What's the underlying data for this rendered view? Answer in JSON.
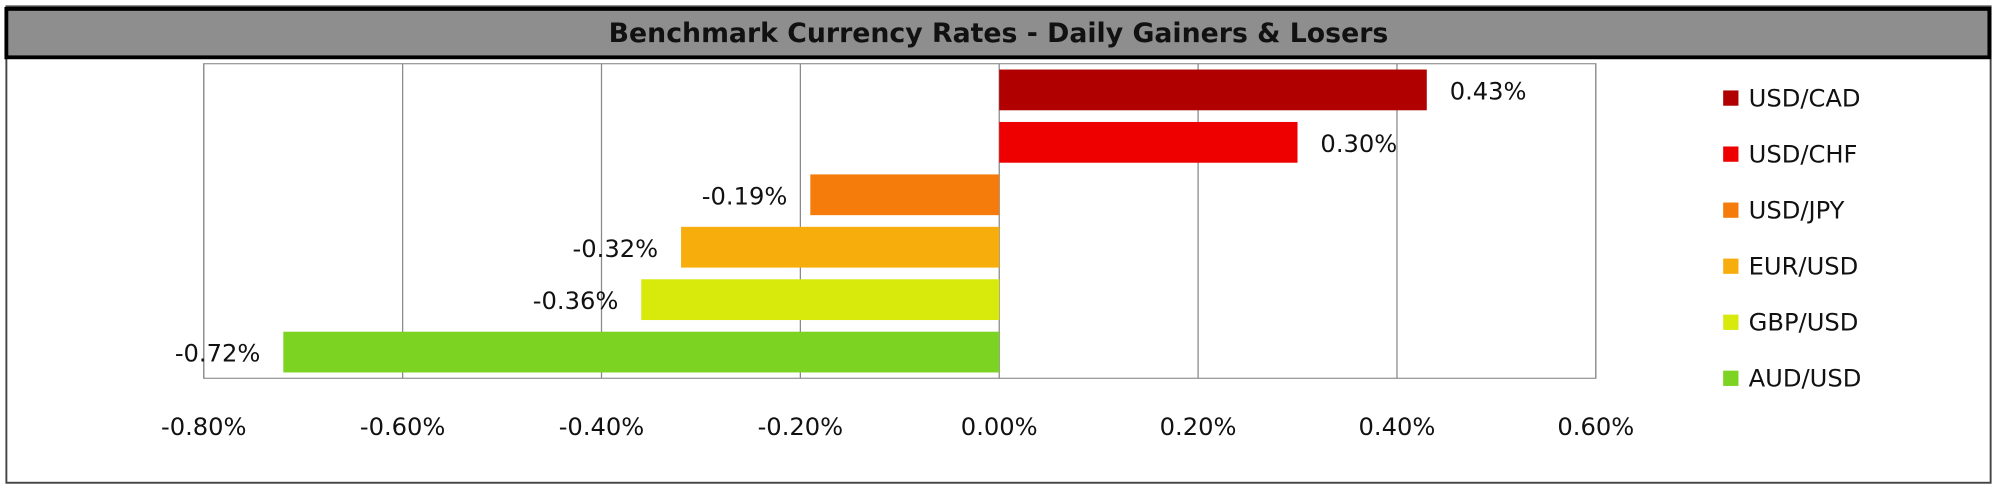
{
  "chart_data": {
    "type": "hbar",
    "title": "Benchmark Currency Rates - Daily Gainers & Losers",
    "categories": [
      "USD/CAD",
      "USD/CHF",
      "USD/JPY",
      "EUR/USD",
      "GBP/USD",
      "AUD/USD"
    ],
    "values": [
      0.43,
      0.3,
      -0.19,
      -0.32,
      -0.36,
      -0.72
    ],
    "value_labels": [
      "0.43%",
      "0.30%",
      "-0.19%",
      "-0.32%",
      "-0.36%",
      "-0.72%"
    ],
    "colors": [
      "#b10000",
      "#ee0000",
      "#f57c0a",
      "#f7ae0c",
      "#d8ea0c",
      "#7dd322"
    ],
    "xlim": [
      -0.8,
      0.6
    ],
    "xticks": [
      {
        "value": -0.8,
        "label": "-0.80%"
      },
      {
        "value": -0.6,
        "label": "-0.60%"
      },
      {
        "value": -0.4,
        "label": "-0.40%"
      },
      {
        "value": -0.2,
        "label": "-0.20%"
      },
      {
        "value": 0,
        "label": "0.00%"
      },
      {
        "value": 0.2,
        "label": "0.20%"
      },
      {
        "value": 0.4,
        "label": "0.40%"
      },
      {
        "value": 0.6,
        "label": "0.60%"
      }
    ],
    "grid": true,
    "legend": "right"
  }
}
